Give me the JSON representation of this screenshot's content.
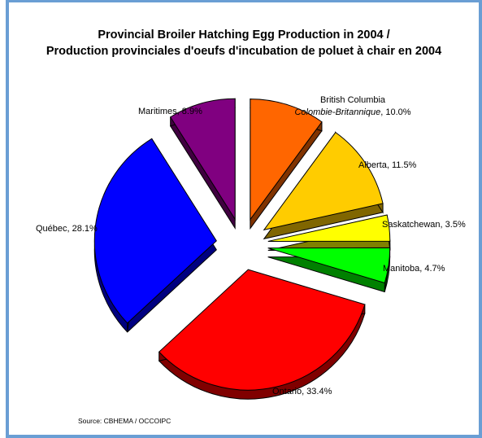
{
  "chart_data": {
    "type": "pie",
    "title_line1": "Provincial Broiler Hatching Egg Production in 2004 /",
    "title_line2": "Production provinciales d'oeufs d'incubation de poluet à chair en 2004",
    "slices": [
      {
        "label": "British Columbia",
        "label_alt": "Colombie-Britannique",
        "value_text": ", 10.0%",
        "value": 10.0,
        "color": "#ff6600"
      },
      {
        "label": "Alberta, 11.5%",
        "value": 11.5,
        "color": "#ffcc00"
      },
      {
        "label": "Saskatchewan, 3.5%",
        "value": 3.5,
        "color": "#ffff00"
      },
      {
        "label": "Manitoba, 4.7%",
        "value": 4.7,
        "color": "#00ff00"
      },
      {
        "label": "Ontario, 33.4%",
        "value": 33.4,
        "color": "#ff0000"
      },
      {
        "label": "Québec, 28.1%",
        "value": 28.1,
        "color": "#0000ff"
      },
      {
        "label": "Maritimes, 8.9%",
        "value": 8.9,
        "color": "#800080"
      }
    ],
    "source": "Source:  CBHEMA / OCCOIPC"
  }
}
